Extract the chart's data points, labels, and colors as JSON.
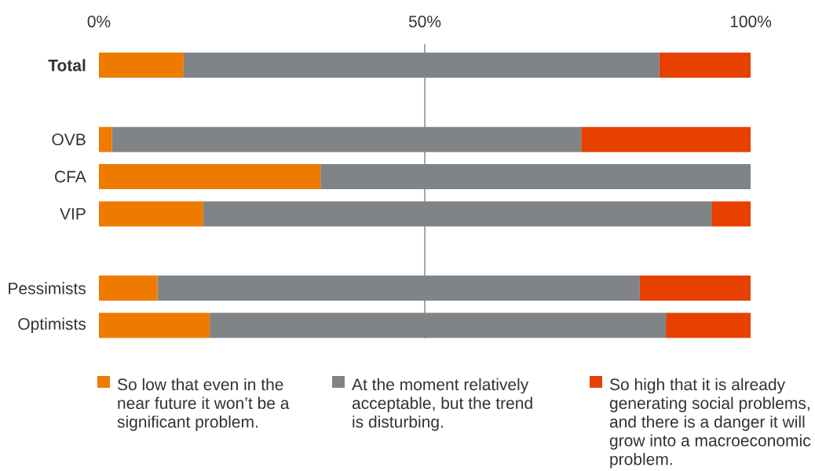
{
  "chart_data": {
    "type": "bar",
    "orientation": "horizontal",
    "stacked": true,
    "categories": [
      "Total",
      null,
      "OVB",
      "CFA",
      "VIP",
      null,
      "Pessimists",
      "Optimists"
    ],
    "series": [
      {
        "name": "So low that even in the near future it won’t be a significant problem.",
        "color": "#ee7b00",
        "values": [
          13,
          null,
          2,
          34,
          16,
          null,
          9,
          17
        ]
      },
      {
        "name": "At the moment relatively acceptable, but the trend is disturbing.",
        "color": "#818487",
        "values": [
          73,
          null,
          72,
          66,
          78,
          null,
          74,
          70
        ]
      },
      {
        "name": "So high that it is already generating social problems, and there is a danger it will grow into a macroeconomic problem.",
        "color": "#e64100",
        "values": [
          14,
          null,
          26,
          0,
          6,
          null,
          17,
          13
        ]
      }
    ],
    "xlim": [
      0,
      100
    ],
    "xticks": [
      {
        "value": 0,
        "label": "0%"
      },
      {
        "value": 50,
        "label": "50%"
      },
      {
        "value": 100,
        "label": "100%"
      }
    ],
    "ref_lines": [
      {
        "axis": "x",
        "value": 50,
        "color": "#231f20"
      }
    ],
    "legend": "bottom"
  }
}
